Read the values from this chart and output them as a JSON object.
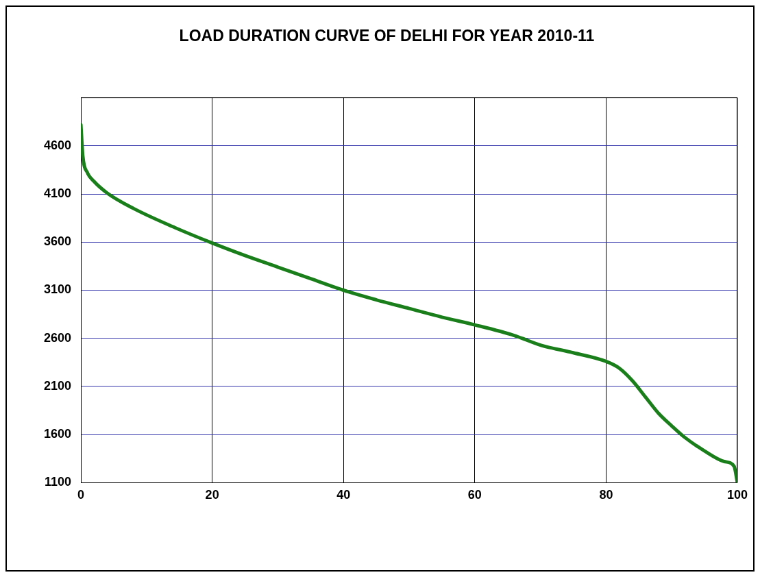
{
  "chart_data": {
    "type": "line",
    "title": "LOAD DURATION CURVE OF DELHI FOR YEAR 2010-11",
    "series": [
      {
        "color": "#1a7f1a",
        "x": [
          0,
          0.3,
          1,
          2,
          4,
          8,
          14,
          20,
          25,
          30,
          35,
          40,
          45,
          50,
          55,
          60,
          66,
          70,
          75,
          80,
          82,
          84,
          86,
          88,
          90,
          92,
          95,
          98,
          99.5,
          100
        ],
        "values": [
          4820,
          4490,
          4320,
          4230,
          4110,
          3950,
          3760,
          3590,
          3460,
          3340,
          3220,
          3100,
          3000,
          2910,
          2820,
          2740,
          2630,
          2530,
          2450,
          2360,
          2290,
          2160,
          1990,
          1820,
          1690,
          1570,
          1430,
          1320,
          1270,
          1100
        ]
      }
    ],
    "xlim": [
      0,
      100
    ],
    "xticks": [
      0,
      20,
      40,
      60,
      80,
      100
    ],
    "ylim": [
      1100,
      5100
    ],
    "yticks": [
      1100,
      1600,
      2100,
      2600,
      3100,
      3600,
      4100,
      4600
    ],
    "grid": true,
    "legend": false,
    "marker": "none",
    "line_style": "solid"
  }
}
